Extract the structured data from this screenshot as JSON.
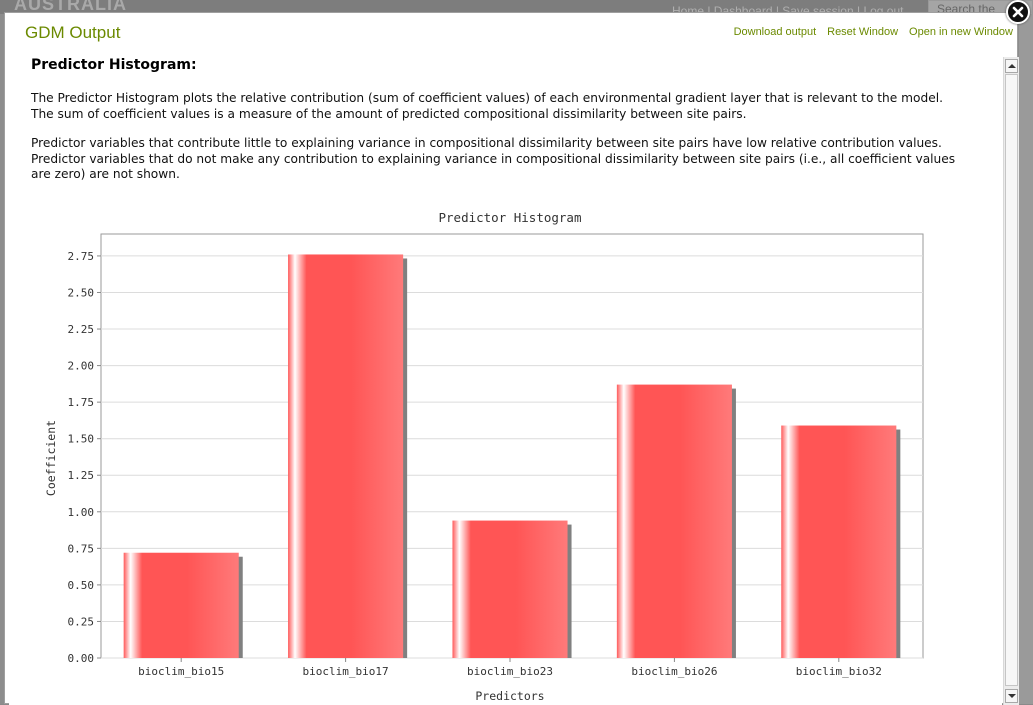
{
  "background": {
    "brand": "AUSTRALIA",
    "top_links": "Home | Dashboard | Save session | Log out",
    "search_placeholder": "Search the"
  },
  "modal": {
    "title": "GDM Output",
    "links": [
      "Download output",
      "Reset Window",
      "Open in new Window"
    ],
    "close_icon": "close-icon"
  },
  "content": {
    "heading": "Predictor Histogram:",
    "paragraph1": "The Predictor Histogram plots the relative contribution (sum of coefficient values) of each environmental gradient layer that is relevant to the model. The sum of coefficient values is a measure of the amount of predicted compositional dissimilarity between site pairs.",
    "paragraph2": "Predictor variables that contribute little to explaining variance in compositional dissimilarity between site pairs have low relative contribution values. Predictor variables that do not make any contribution to explaining variance in compositional dissimilarity between site pairs (i.e., all coefficient values are zero) are not shown."
  },
  "colors": {
    "title_green": "#6b8a00",
    "bar_red": "#ff5555",
    "bar_highlight": "#ffffff",
    "bar_shadow": "#808080"
  },
  "chart_data": {
    "type": "bar",
    "title": "Predictor Histogram",
    "xlabel": "Predictors",
    "ylabel": "Coefficient",
    "categories": [
      "bioclim_bio15",
      "bioclim_bio17",
      "bioclim_bio23",
      "bioclim_bio26",
      "bioclim_bio32"
    ],
    "values": [
      0.72,
      2.76,
      0.94,
      1.87,
      1.59
    ],
    "ylim": [
      0,
      2.9
    ],
    "yticks": [
      "0.00",
      "0.25",
      "0.50",
      "0.75",
      "1.00",
      "1.25",
      "1.50",
      "1.75",
      "2.00",
      "2.25",
      "2.50",
      "2.75"
    ],
    "grid": true,
    "legend": "none"
  }
}
